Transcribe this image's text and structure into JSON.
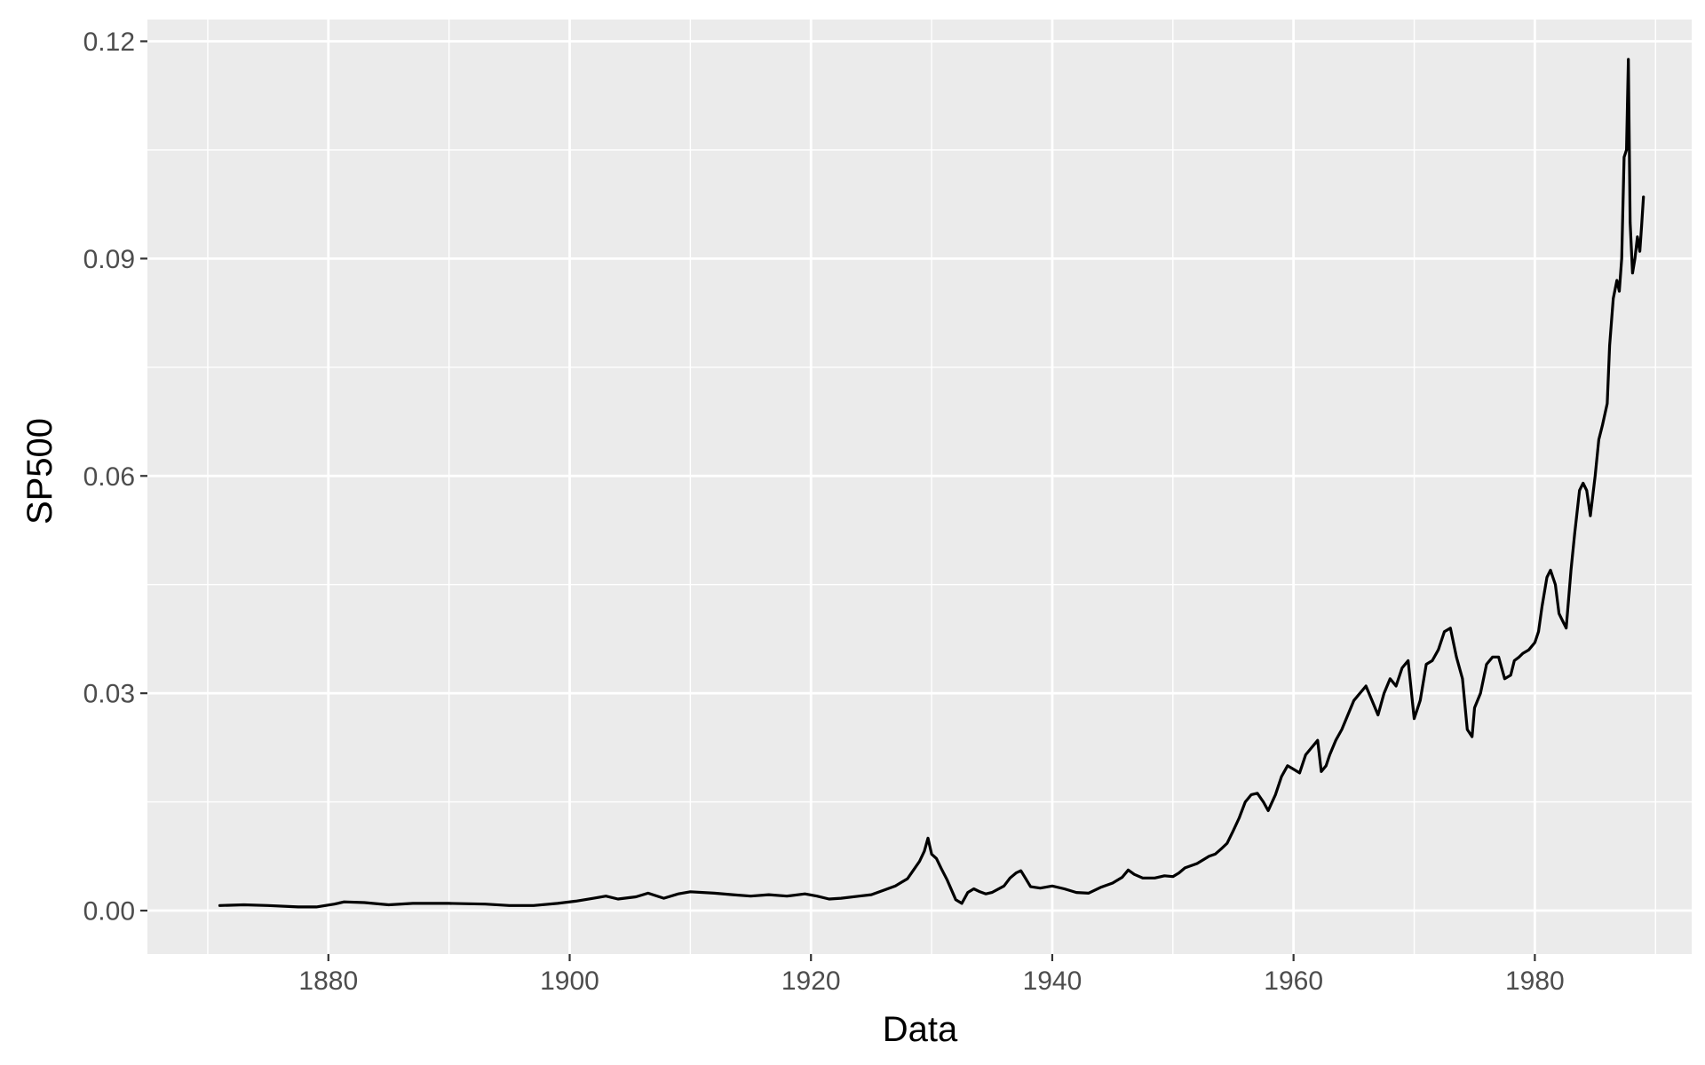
{
  "chart_data": {
    "type": "line",
    "xlabel": "Data",
    "ylabel": "SP500",
    "xlim": [
      1865,
      1993
    ],
    "ylim": [
      -0.006,
      0.123
    ],
    "x_ticks": [
      1880,
      1900,
      1920,
      1940,
      1960,
      1980
    ],
    "x_tick_labels": [
      "1880",
      "1900",
      "1920",
      "1940",
      "1960",
      "1980"
    ],
    "y_ticks": [
      0.0,
      0.03,
      0.06,
      0.09,
      0.12
    ],
    "y_tick_labels": [
      "0.00",
      "0.03",
      "0.06",
      "0.09",
      "0.12"
    ],
    "grid": true,
    "legend": "none",
    "colors": {
      "panel": "#ebebeb",
      "grid": "#ffffff",
      "line": "#000000"
    },
    "series": [
      {
        "x": [
          1871.0,
          1873.0,
          1875.0,
          1877.5,
          1879.0,
          1880.5,
          1881.3,
          1883.0,
          1885.0,
          1887.0,
          1890.0,
          1893.0,
          1895.0,
          1897.0,
          1899.0,
          1900.5,
          1902.0,
          1903.0,
          1904.0,
          1905.5,
          1906.5,
          1907.8,
          1909.0,
          1910.0,
          1912.0,
          1913.5,
          1915.0,
          1916.5,
          1918.0,
          1919.5,
          1920.5,
          1921.5,
          1922.5,
          1924.0,
          1925.0,
          1926.0,
          1927.0,
          1928.0,
          1928.5,
          1929.0,
          1929.4,
          1929.7,
          1930.0,
          1930.4,
          1930.8,
          1931.3,
          1932.0,
          1932.5,
          1933.0,
          1933.5,
          1934.0,
          1934.5,
          1935.0,
          1936.0,
          1936.5,
          1937.0,
          1937.4,
          1937.8,
          1938.2,
          1939.0,
          1940.0,
          1941.0,
          1942.0,
          1943.0,
          1944.0,
          1945.0,
          1945.8,
          1946.3,
          1946.8,
          1947.5,
          1948.5,
          1949.3,
          1950.0,
          1950.5,
          1951.0,
          1952.0,
          1953.0,
          1953.5,
          1954.0,
          1954.5,
          1955.0,
          1955.5,
          1956.0,
          1956.5,
          1957.0,
          1957.5,
          1957.9,
          1958.5,
          1959.0,
          1959.5,
          1960.0,
          1960.5,
          1961.0,
          1961.5,
          1962.0,
          1962.3,
          1962.7,
          1963.0,
          1963.5,
          1964.0,
          1964.5,
          1965.0,
          1965.5,
          1966.0,
          1966.5,
          1967.0,
          1967.5,
          1968.0,
          1968.5,
          1969.0,
          1969.5,
          1970.0,
          1970.5,
          1971.0,
          1971.5,
          1972.0,
          1972.5,
          1973.0,
          1973.5,
          1974.0,
          1974.4,
          1974.8,
          1975.0,
          1975.5,
          1976.0,
          1976.5,
          1977.0,
          1977.5,
          1978.0,
          1978.3,
          1978.7,
          1979.0,
          1979.5,
          1980.0,
          1980.3,
          1980.6,
          1981.0,
          1981.3,
          1981.7,
          1982.0,
          1982.3,
          1982.6,
          1983.0,
          1983.3,
          1983.7,
          1984.0,
          1984.3,
          1984.6,
          1985.0,
          1985.3,
          1985.6,
          1986.0,
          1986.2,
          1986.5,
          1986.8,
          1987.0,
          1987.2,
          1987.4,
          1987.6,
          1987.75,
          1987.9,
          1988.1,
          1988.3,
          1988.5,
          1988.7,
          1988.85,
          1989.0
        ],
        "y": [
          0.0007,
          0.0008,
          0.0007,
          0.0005,
          0.0005,
          0.0009,
          0.0012,
          0.0011,
          0.0008,
          0.001,
          0.001,
          0.0009,
          0.0007,
          0.0007,
          0.001,
          0.0013,
          0.0017,
          0.002,
          0.0016,
          0.0019,
          0.0024,
          0.0017,
          0.0023,
          0.0026,
          0.0024,
          0.0022,
          0.002,
          0.0022,
          0.002,
          0.0023,
          0.002,
          0.0016,
          0.0017,
          0.002,
          0.0022,
          0.0028,
          0.0034,
          0.0044,
          0.0056,
          0.0068,
          0.0082,
          0.01,
          0.0078,
          0.0072,
          0.0058,
          0.0042,
          0.0015,
          0.001,
          0.0025,
          0.003,
          0.0026,
          0.0023,
          0.0025,
          0.0034,
          0.0045,
          0.0052,
          0.0055,
          0.0044,
          0.0033,
          0.0031,
          0.0034,
          0.003,
          0.0025,
          0.0024,
          0.0032,
          0.0038,
          0.0046,
          0.0056,
          0.005,
          0.0045,
          0.0045,
          0.0048,
          0.0047,
          0.0052,
          0.0059,
          0.0065,
          0.0075,
          0.0078,
          0.0085,
          0.0093,
          0.011,
          0.0128,
          0.015,
          0.016,
          0.0162,
          0.015,
          0.0138,
          0.016,
          0.0185,
          0.02,
          0.0195,
          0.019,
          0.0215,
          0.0225,
          0.0235,
          0.0192,
          0.02,
          0.0215,
          0.0235,
          0.025,
          0.027,
          0.029,
          0.03,
          0.031,
          0.029,
          0.027,
          0.03,
          0.032,
          0.031,
          0.0335,
          0.0345,
          0.0265,
          0.029,
          0.034,
          0.0345,
          0.036,
          0.0385,
          0.039,
          0.035,
          0.032,
          0.025,
          0.024,
          0.028,
          0.03,
          0.034,
          0.035,
          0.035,
          0.032,
          0.0325,
          0.0345,
          0.035,
          0.0355,
          0.036,
          0.037,
          0.0385,
          0.042,
          0.046,
          0.047,
          0.045,
          0.041,
          0.04,
          0.039,
          0.047,
          0.052,
          0.058,
          0.059,
          0.058,
          0.0545,
          0.06,
          0.065,
          0.067,
          0.07,
          0.078,
          0.0845,
          0.087,
          0.0855,
          0.09,
          0.104,
          0.105,
          0.1175,
          0.095,
          0.088,
          0.09,
          0.093,
          0.091,
          0.0945,
          0.0985
        ]
      }
    ]
  }
}
